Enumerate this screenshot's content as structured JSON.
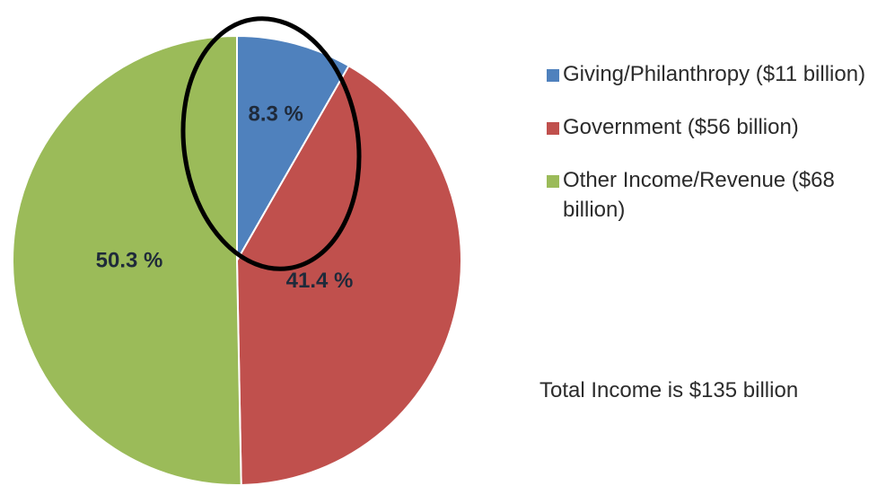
{
  "chart_data": {
    "type": "pie",
    "categories": [
      "Giving/Philanthropy ($11 billion)",
      "Government ($56 billion)",
      "Other Income/Revenue ($68 billion)"
    ],
    "values": [
      8.3,
      41.4,
      50.3
    ],
    "data_labels": [
      "8.3 %",
      "41.4 %",
      "50.3 %"
    ],
    "colors": [
      "#4f81bd",
      "#c0504d",
      "#9bbb59"
    ],
    "legend_position": "right",
    "annotation": "black ellipse highlighting the Giving/Philanthropy slice"
  },
  "legend": {
    "items": [
      {
        "label": "Giving/Philanthropy ($11 billion)",
        "color": "#4f81bd"
      },
      {
        "label": "Government ($56 billion)",
        "color": "#c0504d"
      },
      {
        "label": "Other Income/Revenue ($68 billion)",
        "color": "#9bbb59"
      }
    ]
  },
  "total_note": "Total Income is $135 billion"
}
